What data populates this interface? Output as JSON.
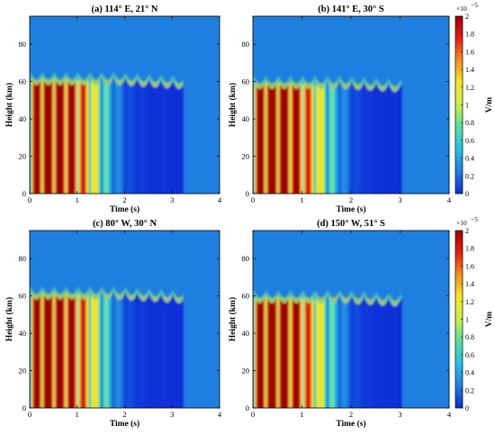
{
  "chart_data": [
    {
      "type": "heatmap",
      "title": "(a) 114° E, 21° N",
      "xlabel": "Time (s)",
      "ylabel": "Height (km)",
      "xlim": [
        0,
        4
      ],
      "ylim": [
        0,
        95
      ],
      "x_ticks": [
        "0",
        "1",
        "2",
        "3",
        "4"
      ],
      "y_ticks": [
        "0",
        "20",
        "40",
        "60",
        "80"
      ],
      "wave": {
        "peak_period_s": 0.25,
        "top_height_km": 62,
        "decay_end_s": 3.2,
        "max_value": 2.0
      },
      "colorbar": null
    },
    {
      "type": "heatmap",
      "title": "(b) 141° E, 30° S",
      "xlabel": "Time (s)",
      "ylabel": "Height (km)",
      "xlim": [
        0,
        4
      ],
      "ylim": [
        0,
        95
      ],
      "x_ticks": [
        "0",
        "1",
        "2",
        "3",
        "4"
      ],
      "y_ticks": [
        "0",
        "20",
        "40",
        "60",
        "80"
      ],
      "wave": {
        "peak_period_s": 0.25,
        "top_height_km": 60,
        "decay_end_s": 3.0,
        "max_value": 2.0
      },
      "colorbar": {
        "ticks": [
          "0",
          "0.2",
          "0.4",
          "0.6",
          "0.8",
          "1",
          "1.2",
          "1.4",
          "1.6",
          "1.8",
          "2"
        ],
        "range": [
          0,
          2
        ],
        "exponent": "×10",
        "exponent_power": "−5",
        "unit": "V/m"
      }
    },
    {
      "type": "heatmap",
      "title": "(c) 80° W, 30° N",
      "xlabel": "Time (s)",
      "ylabel": "Height (km)",
      "xlim": [
        0,
        4
      ],
      "ylim": [
        0,
        95
      ],
      "x_ticks": [
        "0",
        "1",
        "2",
        "3",
        "4"
      ],
      "y_ticks": [
        "0",
        "20",
        "40",
        "60",
        "80"
      ],
      "wave": {
        "peak_period_s": 0.25,
        "top_height_km": 62,
        "decay_end_s": 3.2,
        "max_value": 2.0
      },
      "colorbar": null
    },
    {
      "type": "heatmap",
      "title": "(d) 150° W, 51° S",
      "xlabel": "Time (s)",
      "ylabel": "Height (km)",
      "xlim": [
        0,
        4
      ],
      "ylim": [
        0,
        95
      ],
      "x_ticks": [
        "0",
        "1",
        "2",
        "3",
        "4"
      ],
      "y_ticks": [
        "0",
        "20",
        "40",
        "60",
        "80"
      ],
      "wave": {
        "peak_period_s": 0.25,
        "top_height_km": 60,
        "decay_end_s": 3.0,
        "max_value": 2.0
      },
      "colorbar": {
        "ticks": [
          "0",
          "0.2",
          "0.4",
          "0.6",
          "0.8",
          "1",
          "1.2",
          "1.4",
          "1.6",
          "1.8",
          "2"
        ],
        "range": [
          0,
          2
        ],
        "exponent": "×10",
        "exponent_power": "−5",
        "unit": "V/m"
      }
    }
  ],
  "colors": {
    "background_field": "#1f7fe0",
    "colormap": [
      "#0a2fd8",
      "#1f7fe0",
      "#22c4e8",
      "#55e0a0",
      "#c8f048",
      "#f8e820",
      "#f89020",
      "#e82010",
      "#a00000"
    ]
  }
}
